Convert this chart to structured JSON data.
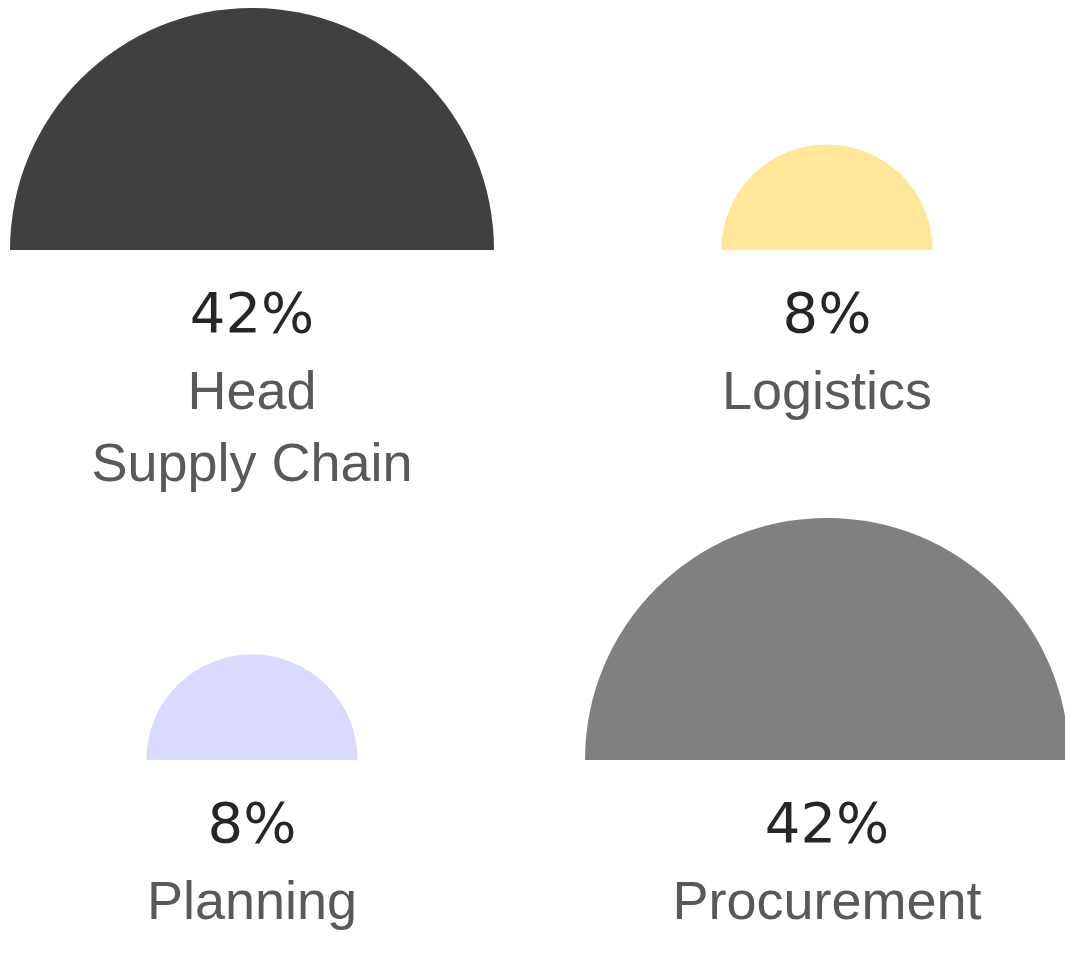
{
  "chart_data": {
    "type": "other",
    "categories": [
      "Head\nSupply Chain",
      "Logistics",
      "Planning",
      "Procurement"
    ],
    "values": [
      42,
      8,
      8,
      42
    ],
    "value_labels": [
      "42%",
      "8%",
      "8%",
      "42%"
    ],
    "colors": [
      "#404040",
      "#ffe699",
      "#dadaff",
      "#808080"
    ]
  }
}
